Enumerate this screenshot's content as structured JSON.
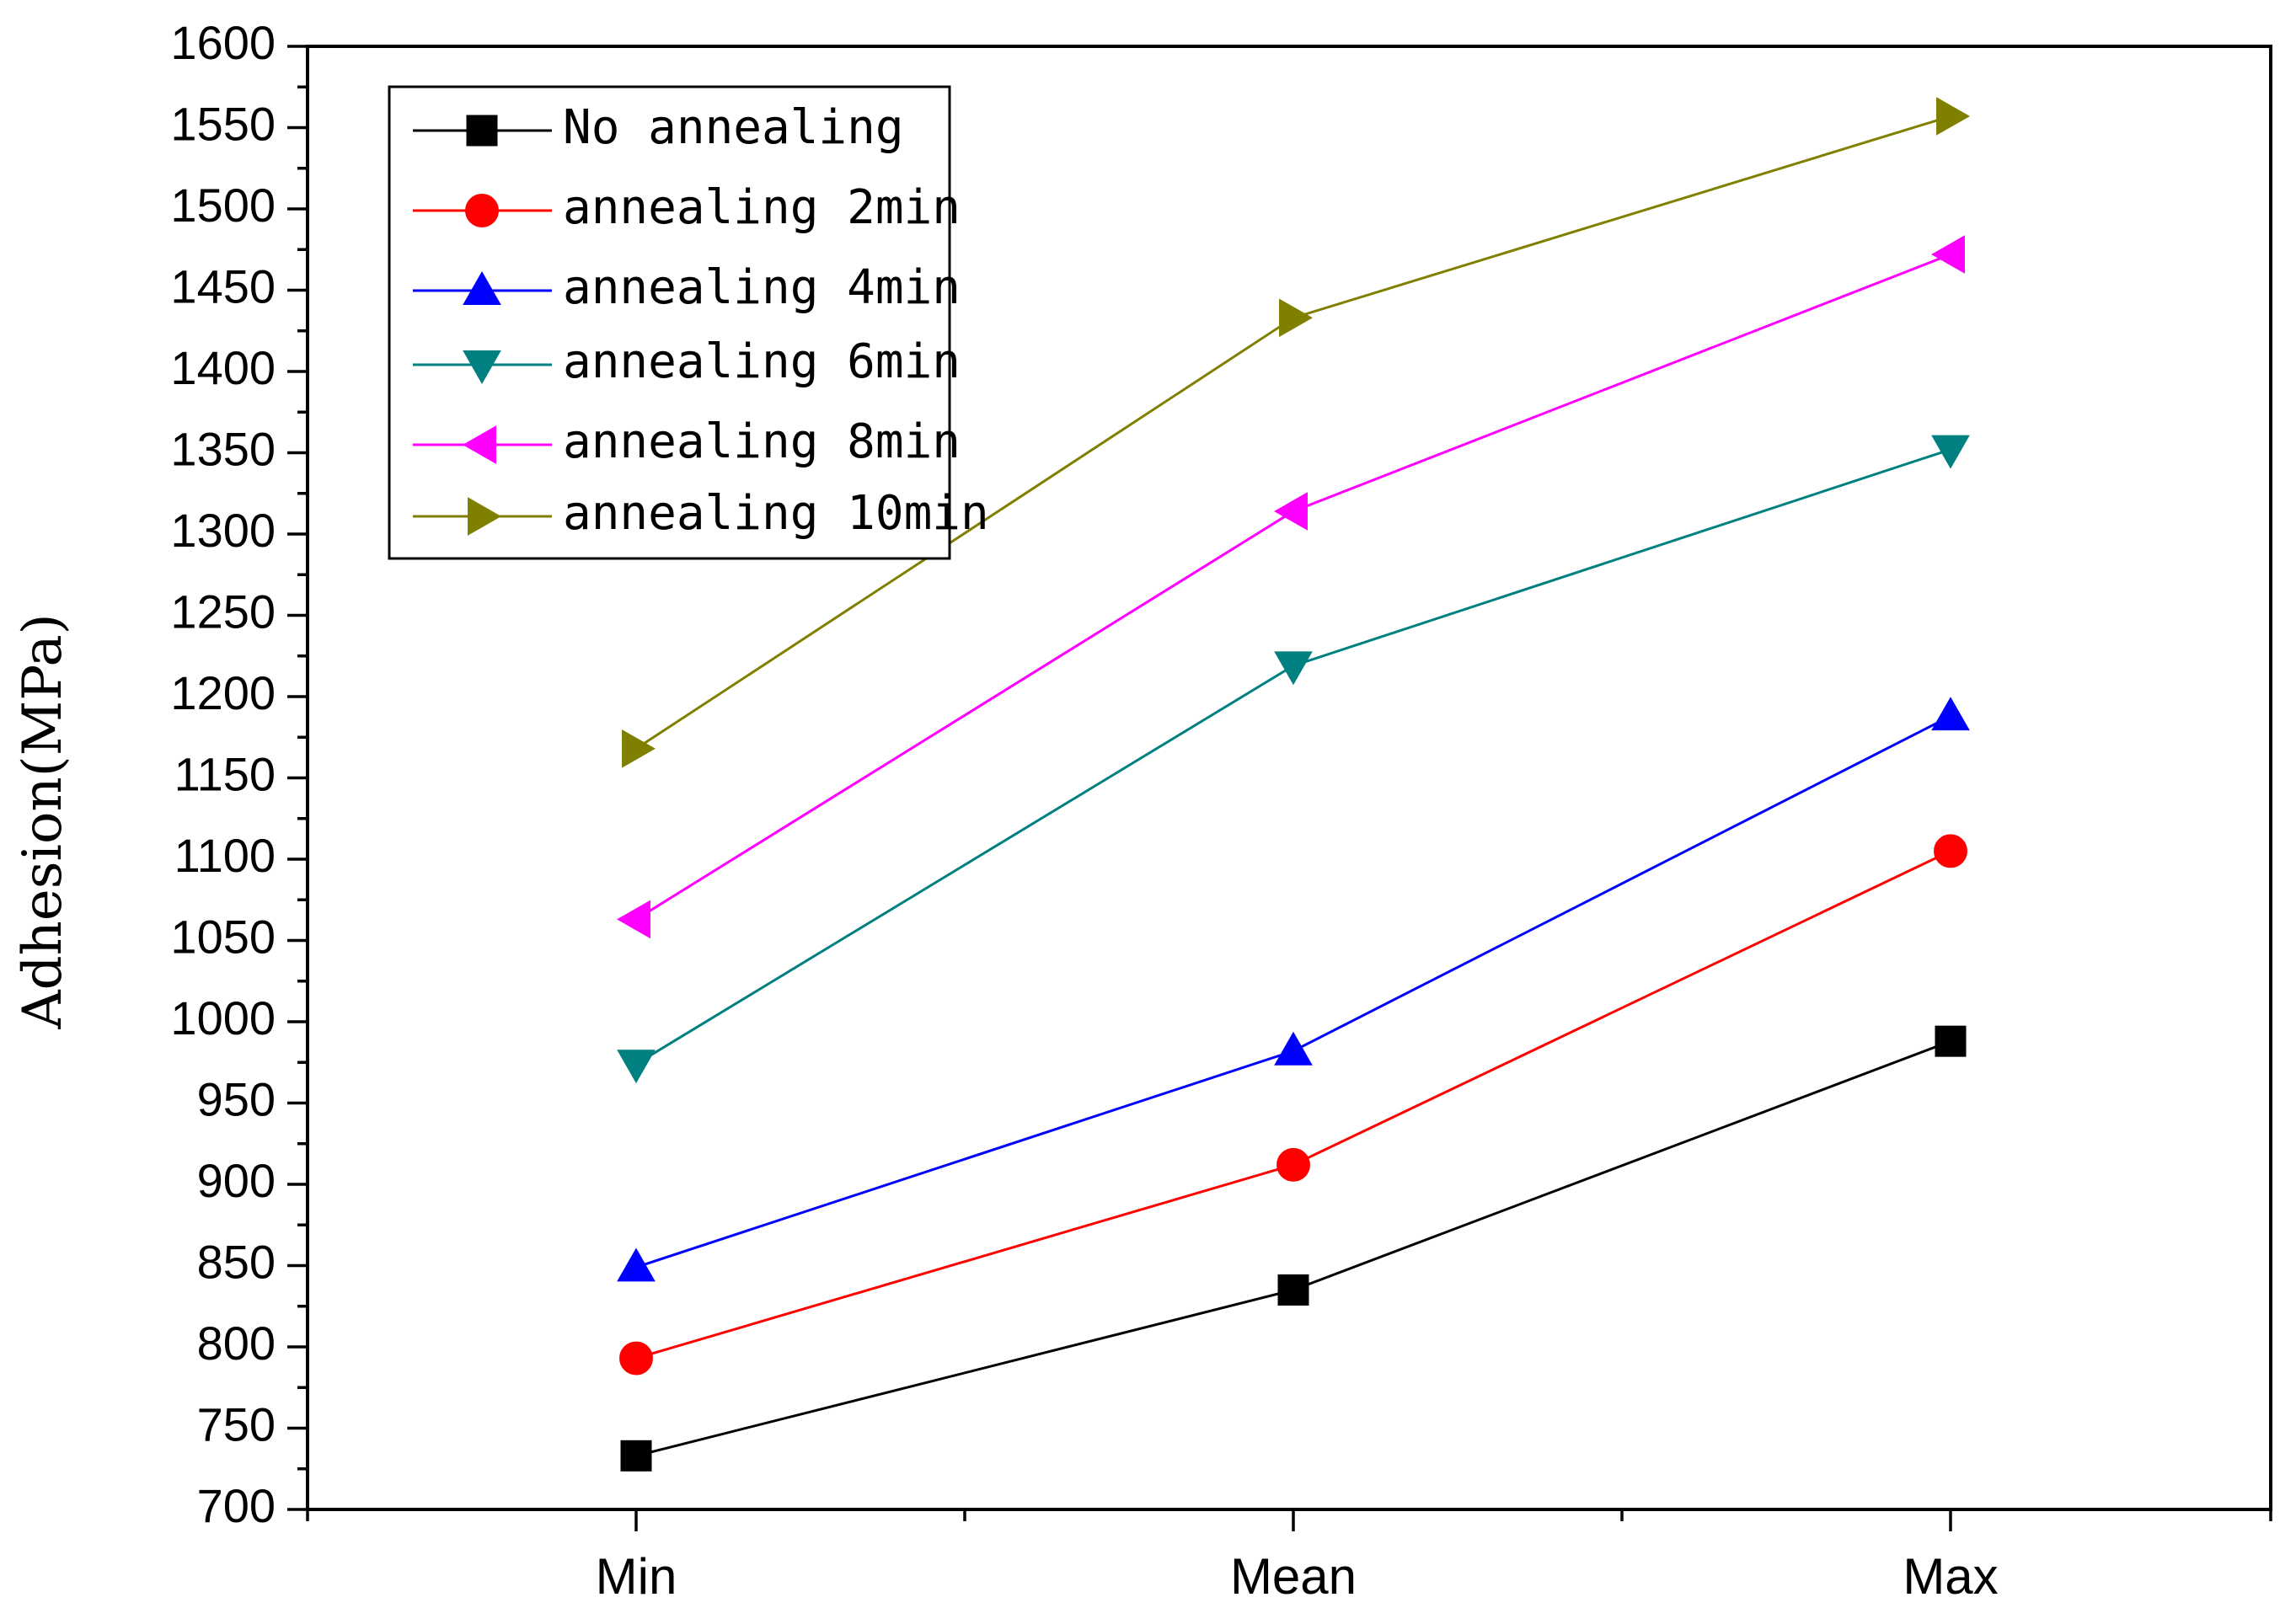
{
  "chart_data": {
    "type": "line",
    "title": "",
    "xlabel": "",
    "ylabel": "Adhesion(MPa)",
    "categories": [
      "Min",
      "Mean",
      "Max"
    ],
    "ylim": [
      700,
      1600
    ],
    "yticks": [
      700,
      750,
      800,
      850,
      900,
      950,
      1000,
      1050,
      1100,
      1150,
      1200,
      1250,
      1300,
      1350,
      1400,
      1450,
      1500,
      1550,
      1600
    ],
    "grid": false,
    "legend_position": "top-left",
    "series": [
      {
        "name": "No annealing",
        "values": [
          733,
          835,
          988
        ],
        "color": "#000000",
        "marker": "square"
      },
      {
        "name": "annealing 2min",
        "values": [
          793,
          912,
          1105
        ],
        "color": "#ff0000",
        "marker": "circle"
      },
      {
        "name": "annealing 4min",
        "values": [
          849,
          982,
          1188
        ],
        "color": "#0000ff",
        "marker": "triangle-up"
      },
      {
        "name": "annealing 6min",
        "values": [
          974,
          1219,
          1352
        ],
        "color": "#008080",
        "marker": "triangle-down"
      },
      {
        "name": "annealing 8min",
        "values": [
          1063,
          1314,
          1472
        ],
        "color": "#ff00ff",
        "marker": "triangle-left"
      },
      {
        "name": "annealing 10min",
        "values": [
          1168,
          1433,
          1557
        ],
        "color": "#808000",
        "marker": "triangle-right"
      }
    ]
  }
}
